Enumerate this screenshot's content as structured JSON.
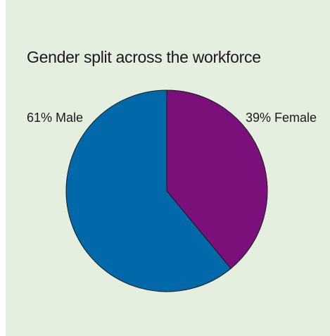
{
  "chart_data": {
    "type": "pie",
    "title": "Gender split across the workforce",
    "slices": [
      {
        "label": "61% Male",
        "category": "Male",
        "value": 61,
        "color": "#0168a9"
      },
      {
        "label": "39% Female",
        "category": "Female",
        "value": 39,
        "color": "#7b107a"
      }
    ],
    "start": "12 o'clock",
    "direction": "counter-clockwise from Male"
  }
}
